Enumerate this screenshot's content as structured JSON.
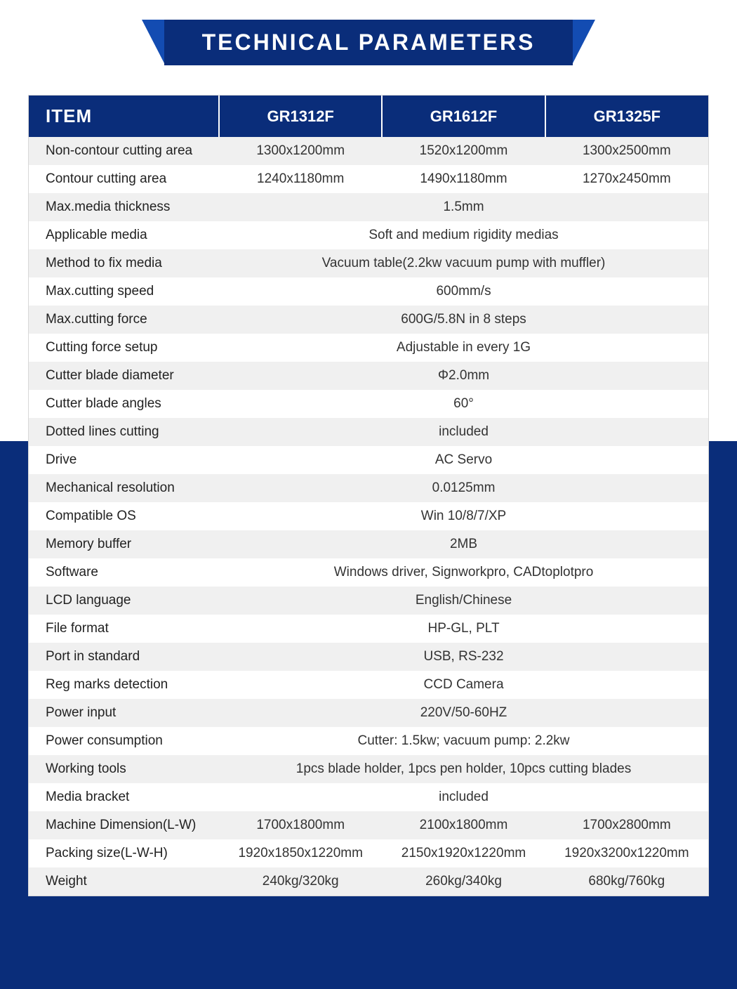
{
  "title": "TECHNICAL PARAMETERS",
  "colors": {
    "primary": "#0a2d7a",
    "accent": "#134cb2",
    "row_odd": "#f0f0f0",
    "row_even": "#ffffff",
    "border": "#d8d8d8",
    "text": "#333333"
  },
  "header": {
    "item": "ITEM",
    "models": [
      "GR1312F",
      "GR1612F",
      "GR1325F"
    ]
  },
  "rows": [
    {
      "label": "Non-contour cutting area",
      "type": "split",
      "values": [
        "1300x1200mm",
        "1520x1200mm",
        "1300x2500mm"
      ]
    },
    {
      "label": "Contour cutting area",
      "type": "split",
      "values": [
        "1240x1180mm",
        "1490x1180mm",
        "1270x2450mm"
      ]
    },
    {
      "label": "Max.media thickness",
      "type": "merged",
      "value": "1.5mm"
    },
    {
      "label": "Applicable media",
      "type": "merged",
      "value": "Soft and medium rigidity medias"
    },
    {
      "label": "Method to fix media",
      "type": "merged",
      "value": "Vacuum table(2.2kw vacuum pump with muffler)"
    },
    {
      "label": "Max.cutting speed",
      "type": "merged",
      "value": "600mm/s"
    },
    {
      "label": "Max.cutting force",
      "type": "merged",
      "value": "600G/5.8N in 8 steps"
    },
    {
      "label": "Cutting force setup",
      "type": "merged",
      "value": "Adjustable in every 1G"
    },
    {
      "label": "Cutter blade diameter",
      "type": "merged",
      "value": "Φ2.0mm"
    },
    {
      "label": "Cutter blade angles",
      "type": "merged",
      "value": "60°"
    },
    {
      "label": "Dotted lines cutting",
      "type": "merged",
      "value": "included"
    },
    {
      "label": "Drive",
      "type": "merged",
      "value": "AC Servo"
    },
    {
      "label": "Mechanical resolution",
      "type": "merged",
      "value": "0.0125mm"
    },
    {
      "label": "Compatible OS",
      "type": "merged",
      "value": "Win 10/8/7/XP"
    },
    {
      "label": "Memory buffer",
      "type": "merged",
      "value": "2MB"
    },
    {
      "label": "Software",
      "type": "merged",
      "value": "Windows driver, Signworkpro, CADtoplotpro"
    },
    {
      "label": "LCD language",
      "type": "merged",
      "value": "English/Chinese"
    },
    {
      "label": "File format",
      "type": "merged",
      "value": "HP-GL, PLT"
    },
    {
      "label": "Port in standard",
      "type": "merged",
      "value": "USB, RS-232"
    },
    {
      "label": "Reg marks detection",
      "type": "merged",
      "value": "CCD Camera"
    },
    {
      "label": "Power input",
      "type": "merged",
      "value": "220V/50-60HZ"
    },
    {
      "label": "Power consumption",
      "type": "merged",
      "value": "Cutter: 1.5kw; vacuum pump: 2.2kw"
    },
    {
      "label": "Working tools",
      "type": "merged",
      "value": "1pcs blade holder, 1pcs pen holder, 10pcs cutting blades"
    },
    {
      "label": "Media bracket",
      "type": "merged",
      "value": "included"
    },
    {
      "label": "Machine Dimension(L-W)",
      "type": "split",
      "values": [
        "1700x1800mm",
        "2100x1800mm",
        "1700x2800mm"
      ]
    },
    {
      "label": "Packing size(L-W-H)",
      "type": "split",
      "values": [
        "1920x1850x1220mm",
        "2150x1920x1220mm",
        "1920x3200x1220mm"
      ]
    },
    {
      "label": "Weight",
      "type": "split",
      "values": [
        "240kg/320kg",
        "260kg/340kg",
        "680kg/760kg"
      ]
    }
  ]
}
